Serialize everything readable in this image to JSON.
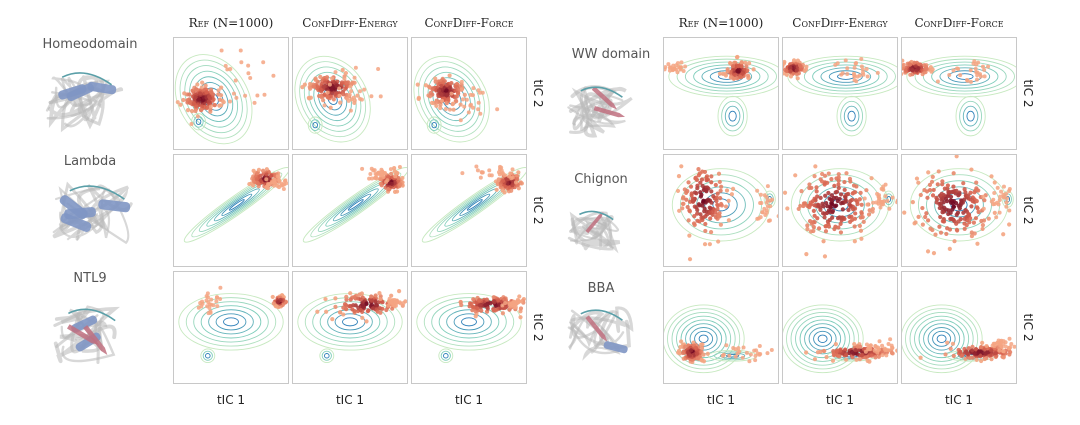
{
  "left_block": {
    "col_titles": [
      "Ref (N=1000)",
      "ConfDiff-Energy",
      "ConfDiff-Force"
    ],
    "proteins": [
      "Homeodomain",
      "Lambda",
      "NTL9"
    ],
    "y_label": "tIC 2",
    "x_label": "tIC 1"
  },
  "right_block": {
    "col_titles": [
      "Ref (N=1000)",
      "ConfDiff-Energy",
      "ConfDiff-Force"
    ],
    "proteins": [
      "WW domain",
      "Chignon",
      "BBA"
    ],
    "y_label": "tIC 2",
    "x_label": "tIC 1"
  },
  "colors": {
    "contour_outer": "#c7e9c0",
    "contour_mid": "#7fcdbb",
    "contour_inner": "#2c7fb8",
    "point_light": "#f4a582",
    "point_mid": "#d6604d",
    "point_dark": "#67001f",
    "helix": "#8096c4",
    "sheet": "#c0707f",
    "coil_grey": "#b8b8b8",
    "coil_teal": "#5a9fa8"
  },
  "icons": [
    "protein-structure-cartoon"
  ]
}
